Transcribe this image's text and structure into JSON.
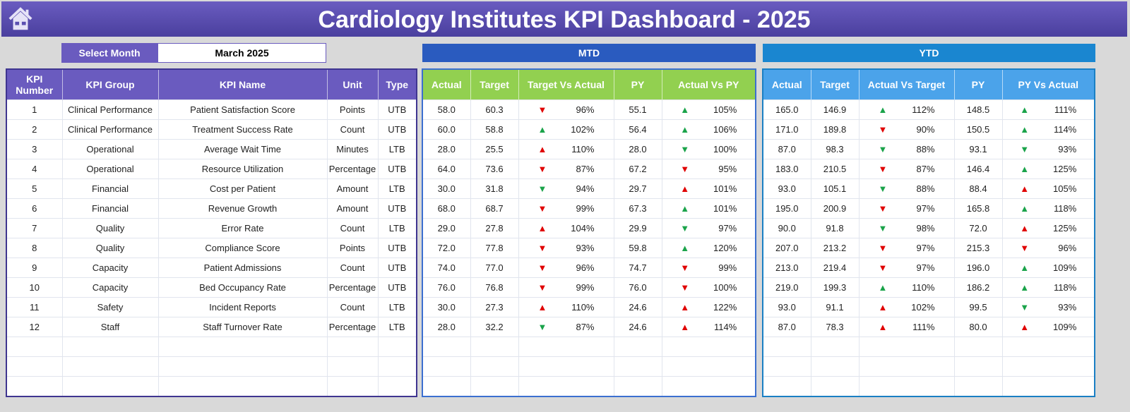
{
  "title": "Cardiology Institutes KPI Dashboard - 2025",
  "select_month": {
    "label": "Select Month",
    "value": "March 2025"
  },
  "sections": {
    "mtd": "MTD",
    "ytd": "YTD"
  },
  "colors": {
    "title": "#5b4fb0",
    "mtd": "#2a5bbf",
    "ytd": "#1a86d0",
    "green": "#1aa34a",
    "red": "#e00000"
  },
  "left_headers": [
    "KPI Number",
    "KPI Group",
    "KPI Name",
    "Unit",
    "Type"
  ],
  "mtd_headers": [
    "Actual",
    "Target",
    "Target Vs Actual",
    "PY",
    "Actual Vs PY"
  ],
  "ytd_headers": [
    "Actual",
    "Target",
    "Actual Vs Target",
    "PY",
    "PY Vs Actual"
  ],
  "rows": [
    {
      "num": "1",
      "group": "Clinical Performance",
      "name": "Patient Satisfaction Score",
      "unit": "Points",
      "type": "UTB",
      "mtd": {
        "actual": "58.0",
        "target": "60.3",
        "tva": {
          "pct": "96%",
          "dir": "down",
          "color": "red"
        },
        "py": "55.1",
        "avpy": {
          "pct": "105%",
          "dir": "up",
          "color": "green"
        }
      },
      "ytd": {
        "actual": "165.0",
        "target": "146.9",
        "avt": {
          "pct": "112%",
          "dir": "up",
          "color": "green"
        },
        "py": "148.5",
        "pyva": {
          "pct": "111%",
          "dir": "up",
          "color": "green"
        }
      }
    },
    {
      "num": "2",
      "group": "Clinical Performance",
      "name": "Treatment Success Rate",
      "unit": "Count",
      "type": "UTB",
      "mtd": {
        "actual": "60.0",
        "target": "58.8",
        "tva": {
          "pct": "102%",
          "dir": "up",
          "color": "green"
        },
        "py": "56.4",
        "avpy": {
          "pct": "106%",
          "dir": "up",
          "color": "green"
        }
      },
      "ytd": {
        "actual": "171.0",
        "target": "189.8",
        "avt": {
          "pct": "90%",
          "dir": "down",
          "color": "red"
        },
        "py": "150.5",
        "pyva": {
          "pct": "114%",
          "dir": "up",
          "color": "green"
        }
      }
    },
    {
      "num": "3",
      "group": "Operational",
      "name": "Average Wait Time",
      "unit": "Minutes",
      "type": "LTB",
      "mtd": {
        "actual": "28.0",
        "target": "25.5",
        "tva": {
          "pct": "110%",
          "dir": "up",
          "color": "red"
        },
        "py": "28.0",
        "avpy": {
          "pct": "100%",
          "dir": "down",
          "color": "green"
        }
      },
      "ytd": {
        "actual": "87.0",
        "target": "98.3",
        "avt": {
          "pct": "88%",
          "dir": "down",
          "color": "green"
        },
        "py": "93.1",
        "pyva": {
          "pct": "93%",
          "dir": "down",
          "color": "green"
        }
      }
    },
    {
      "num": "4",
      "group": "Operational",
      "name": "Resource Utilization",
      "unit": "Percentage",
      "type": "UTB",
      "mtd": {
        "actual": "64.0",
        "target": "73.6",
        "tva": {
          "pct": "87%",
          "dir": "down",
          "color": "red"
        },
        "py": "67.2",
        "avpy": {
          "pct": "95%",
          "dir": "down",
          "color": "red"
        }
      },
      "ytd": {
        "actual": "183.0",
        "target": "210.5",
        "avt": {
          "pct": "87%",
          "dir": "down",
          "color": "red"
        },
        "py": "146.4",
        "pyva": {
          "pct": "125%",
          "dir": "up",
          "color": "green"
        }
      }
    },
    {
      "num": "5",
      "group": "Financial",
      "name": "Cost per Patient",
      "unit": "Amount",
      "type": "LTB",
      "mtd": {
        "actual": "30.0",
        "target": "31.8",
        "tva": {
          "pct": "94%",
          "dir": "down",
          "color": "green"
        },
        "py": "29.7",
        "avpy": {
          "pct": "101%",
          "dir": "up",
          "color": "red"
        }
      },
      "ytd": {
        "actual": "93.0",
        "target": "105.1",
        "avt": {
          "pct": "88%",
          "dir": "down",
          "color": "green"
        },
        "py": "88.4",
        "pyva": {
          "pct": "105%",
          "dir": "up",
          "color": "red"
        }
      }
    },
    {
      "num": "6",
      "group": "Financial",
      "name": "Revenue Growth",
      "unit": "Amount",
      "type": "UTB",
      "mtd": {
        "actual": "68.0",
        "target": "68.7",
        "tva": {
          "pct": "99%",
          "dir": "down",
          "color": "red"
        },
        "py": "67.3",
        "avpy": {
          "pct": "101%",
          "dir": "up",
          "color": "green"
        }
      },
      "ytd": {
        "actual": "195.0",
        "target": "200.9",
        "avt": {
          "pct": "97%",
          "dir": "down",
          "color": "red"
        },
        "py": "165.8",
        "pyva": {
          "pct": "118%",
          "dir": "up",
          "color": "green"
        }
      }
    },
    {
      "num": "7",
      "group": "Quality",
      "name": "Error Rate",
      "unit": "Count",
      "type": "LTB",
      "mtd": {
        "actual": "29.0",
        "target": "27.8",
        "tva": {
          "pct": "104%",
          "dir": "up",
          "color": "red"
        },
        "py": "29.9",
        "avpy": {
          "pct": "97%",
          "dir": "down",
          "color": "green"
        }
      },
      "ytd": {
        "actual": "90.0",
        "target": "91.8",
        "avt": {
          "pct": "98%",
          "dir": "down",
          "color": "green"
        },
        "py": "72.0",
        "pyva": {
          "pct": "125%",
          "dir": "up",
          "color": "red"
        }
      }
    },
    {
      "num": "8",
      "group": "Quality",
      "name": "Compliance Score",
      "unit": "Points",
      "type": "UTB",
      "mtd": {
        "actual": "72.0",
        "target": "77.8",
        "tva": {
          "pct": "93%",
          "dir": "down",
          "color": "red"
        },
        "py": "59.8",
        "avpy": {
          "pct": "120%",
          "dir": "up",
          "color": "green"
        }
      },
      "ytd": {
        "actual": "207.0",
        "target": "213.2",
        "avt": {
          "pct": "97%",
          "dir": "down",
          "color": "red"
        },
        "py": "215.3",
        "pyva": {
          "pct": "96%",
          "dir": "down",
          "color": "red"
        }
      }
    },
    {
      "num": "9",
      "group": "Capacity",
      "name": "Patient Admissions",
      "unit": "Count",
      "type": "UTB",
      "mtd": {
        "actual": "74.0",
        "target": "77.0",
        "tva": {
          "pct": "96%",
          "dir": "down",
          "color": "red"
        },
        "py": "74.7",
        "avpy": {
          "pct": "99%",
          "dir": "down",
          "color": "red"
        }
      },
      "ytd": {
        "actual": "213.0",
        "target": "219.4",
        "avt": {
          "pct": "97%",
          "dir": "down",
          "color": "red"
        },
        "py": "196.0",
        "pyva": {
          "pct": "109%",
          "dir": "up",
          "color": "green"
        }
      }
    },
    {
      "num": "10",
      "group": "Capacity",
      "name": "Bed Occupancy Rate",
      "unit": "Percentage",
      "type": "UTB",
      "mtd": {
        "actual": "76.0",
        "target": "76.8",
        "tva": {
          "pct": "99%",
          "dir": "down",
          "color": "red"
        },
        "py": "76.0",
        "avpy": {
          "pct": "100%",
          "dir": "down",
          "color": "red"
        }
      },
      "ytd": {
        "actual": "219.0",
        "target": "199.3",
        "avt": {
          "pct": "110%",
          "dir": "up",
          "color": "green"
        },
        "py": "186.2",
        "pyva": {
          "pct": "118%",
          "dir": "up",
          "color": "green"
        }
      }
    },
    {
      "num": "11",
      "group": "Safety",
      "name": "Incident Reports",
      "unit": "Count",
      "type": "LTB",
      "mtd": {
        "actual": "30.0",
        "target": "27.3",
        "tva": {
          "pct": "110%",
          "dir": "up",
          "color": "red"
        },
        "py": "24.6",
        "avpy": {
          "pct": "122%",
          "dir": "up",
          "color": "red"
        }
      },
      "ytd": {
        "actual": "93.0",
        "target": "91.1",
        "avt": {
          "pct": "102%",
          "dir": "up",
          "color": "red"
        },
        "py": "99.5",
        "pyva": {
          "pct": "93%",
          "dir": "down",
          "color": "green"
        }
      }
    },
    {
      "num": "12",
      "group": "Staff",
      "name": "Staff Turnover Rate",
      "unit": "Percentage",
      "type": "LTB",
      "mtd": {
        "actual": "28.0",
        "target": "32.2",
        "tva": {
          "pct": "87%",
          "dir": "down",
          "color": "green"
        },
        "py": "24.6",
        "avpy": {
          "pct": "114%",
          "dir": "up",
          "color": "red"
        }
      },
      "ytd": {
        "actual": "87.0",
        "target": "78.3",
        "avt": {
          "pct": "111%",
          "dir": "up",
          "color": "red"
        },
        "py": "80.0",
        "pyva": {
          "pct": "109%",
          "dir": "up",
          "color": "red"
        }
      }
    }
  ]
}
